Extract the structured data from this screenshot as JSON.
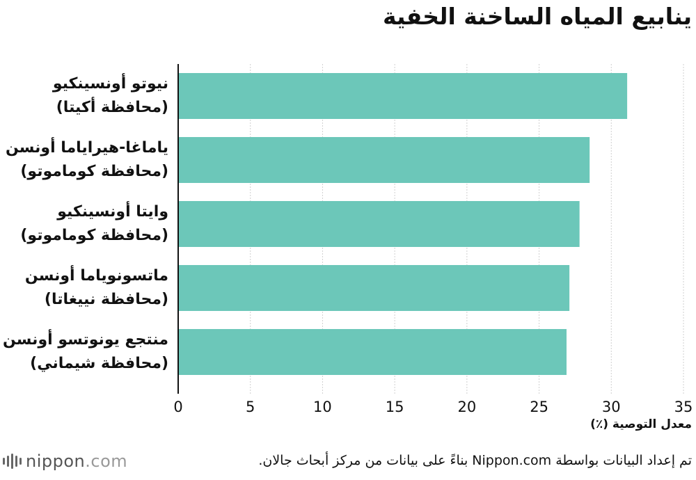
{
  "title": "ينابيع المياه الساخنة الخفية",
  "chart_data": {
    "type": "bar",
    "orientation": "horizontal",
    "categories": [
      {
        "name": "نيوتو أونسينكيو",
        "region": "(محافظة أكيتا)"
      },
      {
        "name": "ياماغا-هيراياما أونسن",
        "region": "(محافظة كوماموتو)"
      },
      {
        "name": "وايتا أونسينكيو",
        "region": "(محافظة كوماموتو)"
      },
      {
        "name": "ماتسونوياما أونسن",
        "region": "(محافظة نييغاتا)"
      },
      {
        "name": "منتجع يونوتسو أونسن",
        "region": "(محافظة شيماني)"
      }
    ],
    "values": [
      31.1,
      28.5,
      27.8,
      27.1,
      26.9
    ],
    "xlim": [
      0,
      35
    ],
    "ticks": [
      "0",
      "5",
      "10",
      "15",
      "20",
      "25",
      "30",
      "35"
    ],
    "xlabel": "معدل التوصية (٪)",
    "ylabel": "",
    "grid": "vertical",
    "bar_color": "#6cc7b9"
  },
  "footer": {
    "logo_main": "nippon",
    "logo_domain": ".com",
    "source": "تم إعداد البيانات بواسطة Nippon.com بناءً على بيانات من مركز أبحاث جالان."
  }
}
